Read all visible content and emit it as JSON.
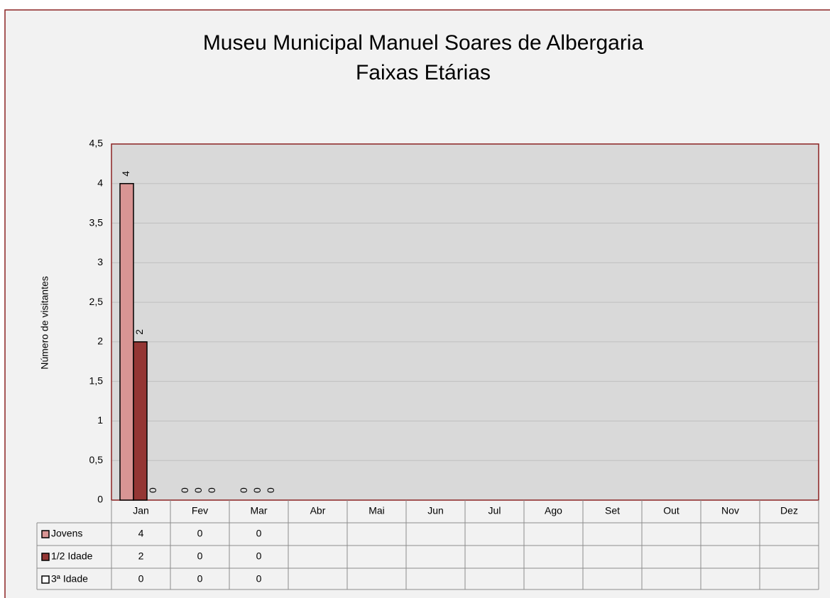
{
  "chart_data": {
    "type": "bar",
    "title": "Museu Municipal Manuel Soares de Albergaria",
    "subtitle": "Faixas Etárias",
    "y_label": "Número de visitantes",
    "categories": [
      "Jan",
      "Fev",
      "Mar",
      "Abr",
      "Mai",
      "Jun",
      "Jul",
      "Ago",
      "Set",
      "Out",
      "Nov",
      "Dez"
    ],
    "series": [
      {
        "name": "Jovens",
        "color": "#d99594",
        "values": [
          4,
          0,
          0,
          null,
          null,
          null,
          null,
          null,
          null,
          null,
          null,
          null
        ]
      },
      {
        "name": "1/2 Idade",
        "color": "#943634",
        "values": [
          2,
          0,
          0,
          null,
          null,
          null,
          null,
          null,
          null,
          null,
          null,
          null
        ]
      },
      {
        "name": "3ª Idade",
        "color": "#ffffff",
        "values": [
          0,
          0,
          0,
          null,
          null,
          null,
          null,
          null,
          null,
          null,
          null,
          null
        ]
      }
    ],
    "ylim": [
      0,
      4.5
    ],
    "yticks": [
      0,
      {
        "value": 0.5,
        "label": "0,5"
      },
      1,
      {
        "value": 1.5,
        "label": "1,5"
      },
      2,
      {
        "value": 2.5,
        "label": "2,5"
      },
      3,
      {
        "value": 3.5,
        "label": "3,5"
      },
      4,
      {
        "value": 4.5,
        "label": "4,5"
      }
    ],
    "grid": true
  }
}
